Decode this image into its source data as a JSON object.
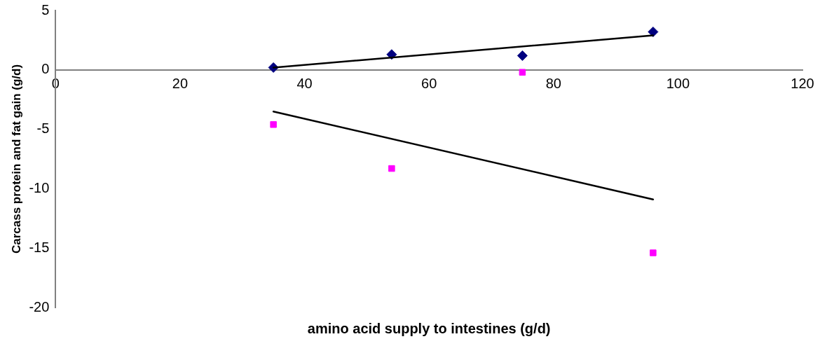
{
  "chart_data": {
    "type": "scatter",
    "xlabel": "amino acid supply to intestines (g/d)",
    "ylabel": "Carcass protein and fat gain (g/d)",
    "xlim": [
      0,
      120
    ],
    "xticks": [
      0,
      20,
      40,
      60,
      80,
      100,
      120
    ],
    "ylim": [
      -20,
      5
    ],
    "yticks": [
      -20,
      -15,
      -10,
      -5,
      0,
      5
    ],
    "grid": false,
    "legend": false,
    "series": [
      {
        "type": "scatter",
        "color": "#000080",
        "marker": "diamond",
        "x": [
          35,
          54,
          75,
          96
        ],
        "values": [
          0.2,
          1.3,
          1.2,
          3.2
        ]
      },
      {
        "type": "scatter",
        "color": "#ff00ff",
        "marker": "square",
        "x": [
          35,
          54,
          75,
          96
        ],
        "values": [
          -4.6,
          -8.3,
          -0.2,
          -15.4
        ]
      },
      {
        "type": "line",
        "color": "#000000",
        "marker": "none",
        "x": [
          35,
          96
        ],
        "values": [
          0.2,
          2.9
        ]
      },
      {
        "type": "line",
        "color": "#000000",
        "marker": "none",
        "x": [
          35,
          96
        ],
        "values": [
          -3.5,
          -10.9
        ]
      }
    ]
  }
}
